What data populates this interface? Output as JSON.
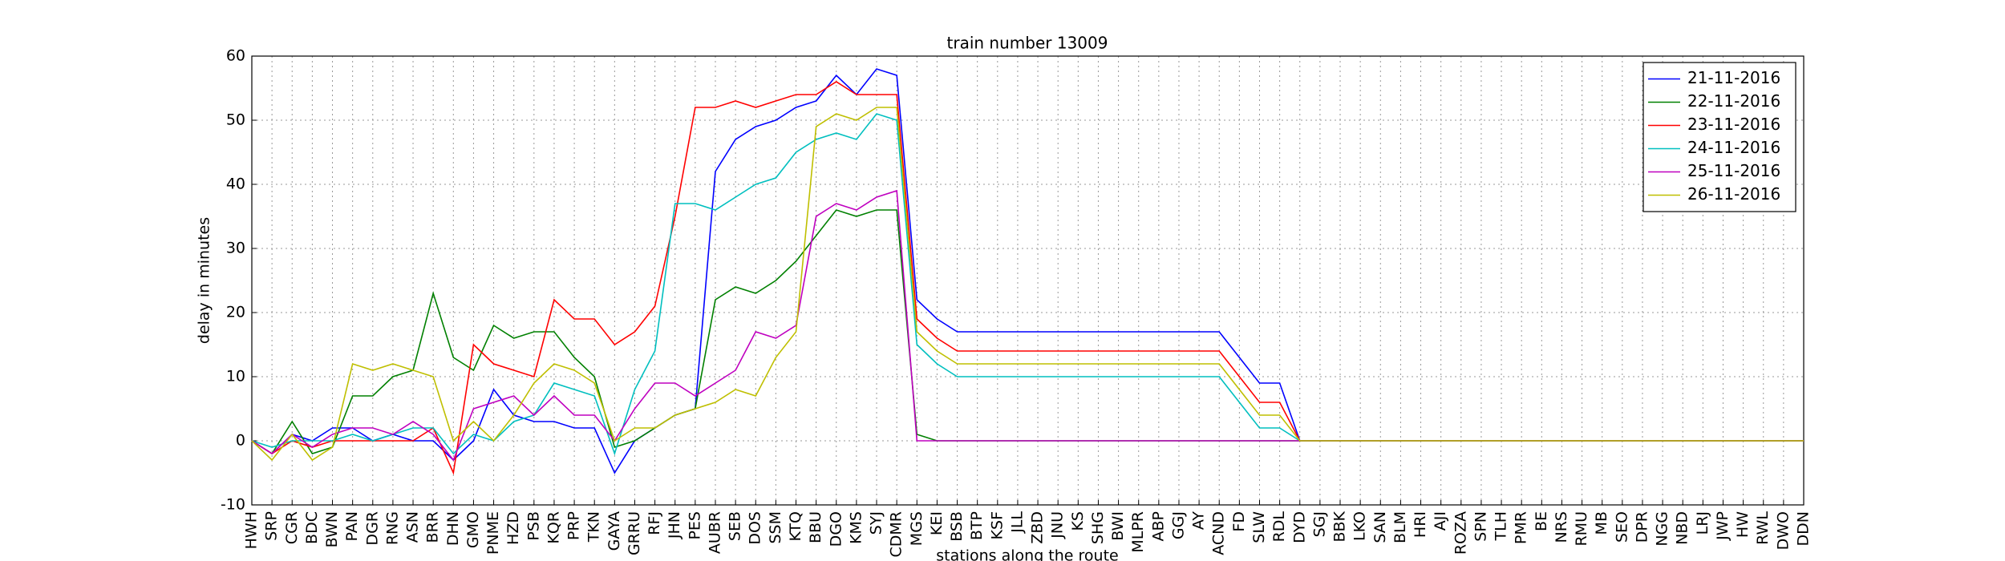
{
  "chart_data": {
    "type": "line",
    "title": "train number 13009",
    "x_label": "stations along the route",
    "y_label": "delay in minutes",
    "categories": [
      "HWH",
      "SRP",
      "CGR",
      "BDC",
      "BWN",
      "PAN",
      "DGR",
      "RNG",
      "ASN",
      "BRR",
      "DHN",
      "GMO",
      "PNME",
      "HZD",
      "PSB",
      "KQR",
      "PRP",
      "TKN",
      "GAYA",
      "GRRU",
      "RFJ",
      "JHN",
      "PES",
      "AUBR",
      "SEB",
      "DOS",
      "SSM",
      "KTQ",
      "BBU",
      "DGO",
      "KMS",
      "SYJ",
      "CDMR",
      "MGS",
      "KEI",
      "BSB",
      "BTP",
      "KSF",
      "JLL",
      "ZBD",
      "JNU",
      "KS",
      "SHG",
      "BWI",
      "MLPR",
      "ABP",
      "GGJ",
      "AY",
      "ACND",
      "FD",
      "SLW",
      "RDL",
      "DYD",
      "SGJ",
      "BBK",
      "LKO",
      "SAN",
      "BLM",
      "HRI",
      "AJI",
      "ROZA",
      "SPN",
      "TLH",
      "PMR",
      "BE",
      "NRS",
      "RMU",
      "MB",
      "SEO",
      "DPR",
      "NGG",
      "NBD",
      "LRJ",
      "JWP",
      "HW",
      "RWL",
      "DWO",
      "DDN"
    ],
    "series": [
      {
        "name": "21-11-2016",
        "color": "#0000ff",
        "values": [
          0,
          -2,
          1,
          0,
          2,
          2,
          0,
          1,
          0,
          0,
          -3,
          0,
          8,
          4,
          3,
          3,
          2,
          2,
          -5,
          0,
          2,
          4,
          5,
          42,
          47,
          49,
          50,
          52,
          53,
          57,
          54,
          58,
          57,
          22,
          19,
          17,
          17,
          17,
          17,
          17,
          17,
          17,
          17,
          17,
          17,
          17,
          17,
          17,
          17,
          13,
          9,
          9,
          0,
          0,
          0,
          0,
          0,
          0,
          0,
          0,
          0,
          0,
          0,
          0,
          0,
          0,
          0,
          0,
          0,
          0,
          0,
          0,
          0,
          0,
          0,
          0,
          0,
          0
        ]
      },
      {
        "name": "22-11-2016",
        "color": "#008000",
        "values": [
          0,
          -2,
          3,
          -2,
          -1,
          7,
          7,
          10,
          11,
          23,
          13,
          11,
          18,
          16,
          17,
          17,
          13,
          10,
          -1,
          0,
          2,
          4,
          5,
          22,
          24,
          23,
          25,
          28,
          32,
          36,
          35,
          36,
          36,
          1,
          0,
          0,
          0,
          0,
          0,
          0,
          0,
          0,
          0,
          0,
          0,
          0,
          0,
          0,
          0,
          0,
          0,
          0,
          0,
          0,
          0,
          0,
          0,
          0,
          0,
          0,
          0,
          0,
          0,
          0,
          0,
          0,
          0,
          0,
          0,
          0,
          0,
          0,
          0,
          0,
          0,
          0,
          0,
          0
        ]
      },
      {
        "name": "23-11-2016",
        "color": "#ff0000",
        "values": [
          0,
          -2,
          0,
          -1,
          0,
          0,
          0,
          0,
          0,
          2,
          -5,
          15,
          12,
          11,
          10,
          22,
          19,
          19,
          15,
          17,
          21,
          35,
          52,
          52,
          53,
          52,
          53,
          54,
          54,
          56,
          54,
          54,
          54,
          19,
          16,
          14,
          14,
          14,
          14,
          14,
          14,
          14,
          14,
          14,
          14,
          14,
          14,
          14,
          14,
          10,
          6,
          6,
          0,
          0,
          0,
          0,
          0,
          0,
          0,
          0,
          0,
          0,
          0,
          0,
          0,
          0,
          0,
          0,
          0,
          0,
          0,
          0,
          0,
          0,
          0,
          0,
          0,
          0
        ]
      },
      {
        "name": "24-11-2016",
        "color": "#00bfbf",
        "values": [
          0,
          -1,
          0,
          0,
          0,
          1,
          0,
          1,
          2,
          2,
          -2,
          1,
          0,
          3,
          4,
          9,
          8,
          7,
          -2,
          8,
          14,
          37,
          37,
          36,
          38,
          40,
          41,
          45,
          47,
          48,
          47,
          51,
          50,
          15,
          12,
          10,
          10,
          10,
          10,
          10,
          10,
          10,
          10,
          10,
          10,
          10,
          10,
          10,
          10,
          6,
          2,
          2,
          0,
          0,
          0,
          0,
          0,
          0,
          0,
          0,
          0,
          0,
          0,
          0,
          0,
          0,
          0,
          0,
          0,
          0,
          0,
          0,
          0,
          0,
          0,
          0,
          0,
          0
        ]
      },
      {
        "name": "25-11-2016",
        "color": "#bf00bf",
        "values": [
          0,
          -2,
          1,
          -1,
          1,
          2,
          2,
          1,
          3,
          1,
          -3,
          5,
          6,
          7,
          4,
          7,
          4,
          4,
          0,
          5,
          9,
          9,
          7,
          9,
          11,
          17,
          16,
          18,
          35,
          37,
          36,
          38,
          39,
          0,
          0,
          0,
          0,
          0,
          0,
          0,
          0,
          0,
          0,
          0,
          0,
          0,
          0,
          0,
          0,
          0,
          0,
          0,
          0,
          0,
          0,
          0,
          0,
          0,
          0,
          0,
          0,
          0,
          0,
          0,
          0,
          0,
          0,
          0,
          0,
          0,
          0,
          0,
          0,
          0,
          0,
          0,
          0,
          0
        ]
      },
      {
        "name": "26-11-2016",
        "color": "#bfbf00",
        "values": [
          0,
          -3,
          1,
          -3,
          -1,
          12,
          11,
          12,
          11,
          10,
          0,
          3,
          0,
          4,
          9,
          12,
          11,
          9,
          0,
          2,
          2,
          4,
          5,
          6,
          8,
          7,
          13,
          17,
          49,
          51,
          50,
          52,
          52,
          17,
          14,
          12,
          12,
          12,
          12,
          12,
          12,
          12,
          12,
          12,
          12,
          12,
          12,
          12,
          12,
          8,
          4,
          4,
          0,
          0,
          0,
          0,
          0,
          0,
          0,
          0,
          0,
          0,
          0,
          0,
          0,
          0,
          0,
          0,
          0,
          0,
          0,
          0,
          0,
          0,
          0,
          0,
          0,
          0
        ]
      }
    ],
    "ylim": [
      -10,
      60
    ],
    "yticks": [
      -10,
      0,
      10,
      20,
      30,
      40,
      50,
      60
    ],
    "grid": true,
    "legend": "upper right"
  }
}
